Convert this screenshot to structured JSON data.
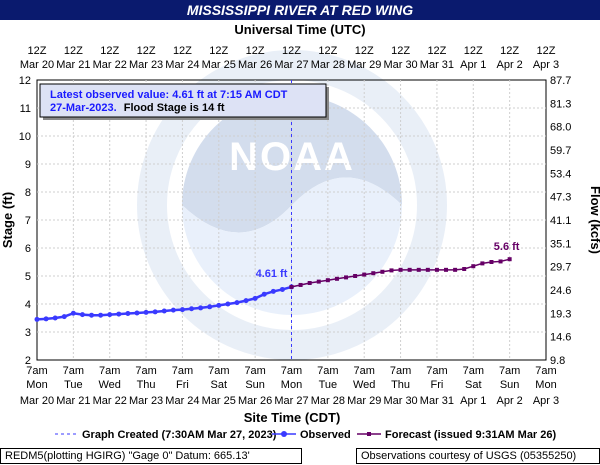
{
  "chart_data": {
    "type": "line",
    "title": "MISSISSIPPI RIVER AT RED WING",
    "top_axis_title": "Universal Time (UTC)",
    "xlabel": "Site Time (CDT)",
    "ylabel": "Stage (ft)",
    "ylabel_right": "Flow (kcfs)",
    "ylim": [
      2,
      12
    ],
    "yticks": [
      "2",
      "3",
      "4",
      "5",
      "6",
      "7",
      "8",
      "9",
      "10",
      "11",
      "12"
    ],
    "right_ticks": [
      "9.8",
      "14.6",
      "19.3",
      "24.6",
      "29.7",
      "35.1",
      "41.1",
      "47.3",
      "53.4",
      "59.7",
      "68.0",
      "81.3",
      "87.7"
    ],
    "bottom_ticks_row1": [
      "7am",
      "7am",
      "7am",
      "7am",
      "7am",
      "7am",
      "7am",
      "7am",
      "7am",
      "7am",
      "7am",
      "7am",
      "7am",
      "7am",
      "7am"
    ],
    "bottom_ticks_row2": [
      "Mon",
      "Tue",
      "Wed",
      "Thu",
      "Fri",
      "Sat",
      "Sun",
      "Mon",
      "Tue",
      "Wed",
      "Thu",
      "Fri",
      "Sat",
      "Sun",
      "Mon"
    ],
    "bottom_ticks_row3": [
      "Mar 20",
      "Mar 21",
      "Mar 22",
      "Mar 23",
      "Mar 24",
      "Mar 25",
      "Mar 26",
      "Mar 27",
      "Mar 28",
      "Mar 29",
      "Mar 30",
      "Mar 31",
      "Apr 1",
      "Apr 2",
      "Apr 3"
    ],
    "top_ticks_row1": [
      "12Z",
      "12Z",
      "12Z",
      "12Z",
      "12Z",
      "12Z",
      "12Z",
      "12Z",
      "12Z",
      "12Z",
      "12Z",
      "12Z",
      "12Z",
      "12Z",
      "12Z"
    ],
    "top_ticks_row2": [
      "Mar 20",
      "Mar 21",
      "Mar 22",
      "Mar 23",
      "Mar 24",
      "Mar 25",
      "Mar 26",
      "Mar 27",
      "Mar 28",
      "Mar 29",
      "Mar 30",
      "Mar 31",
      "Apr 1",
      "Apr 2",
      "Apr 3"
    ],
    "info_line1": "Latest observed value: 4.61 ft at 7:15 AM CDT",
    "info_line2_date": "27-Mar-2023.",
    "info_line2_rest": "Flood Stage is 14 ft",
    "observed_label": "4.61 ft",
    "forecast_label": "5.6 ft",
    "legend": {
      "graph_created": "Graph Created (7:30AM Mar 27, 2023)",
      "observed": "Observed",
      "forecast": "Forecast (issued 9:31AM Mar 26)"
    },
    "series": [
      {
        "name": "Observed",
        "color": "#3a3aff",
        "x": [
          0,
          0.25,
          0.5,
          0.75,
          1,
          1.25,
          1.5,
          1.75,
          2,
          2.25,
          2.5,
          2.75,
          3,
          3.25,
          3.5,
          3.75,
          4,
          4.25,
          4.5,
          4.75,
          5,
          5.25,
          5.5,
          5.75,
          6,
          6.25,
          6.5,
          6.75,
          7
        ],
        "values": [
          3.45,
          3.47,
          3.5,
          3.55,
          3.67,
          3.62,
          3.6,
          3.6,
          3.62,
          3.64,
          3.66,
          3.68,
          3.7,
          3.72,
          3.75,
          3.78,
          3.8,
          3.83,
          3.86,
          3.9,
          3.95,
          4.0,
          4.05,
          4.12,
          4.2,
          4.35,
          4.45,
          4.52,
          4.61
        ]
      },
      {
        "name": "Forecast",
        "color": "#660066",
        "x": [
          7,
          7.25,
          7.5,
          7.75,
          8,
          8.25,
          8.5,
          8.75,
          9,
          9.25,
          9.5,
          9.75,
          10,
          10.25,
          10.5,
          10.75,
          11,
          11.25,
          11.5,
          11.75,
          12,
          12.25,
          12.5,
          12.75,
          13
        ],
        "values": [
          4.61,
          4.68,
          4.75,
          4.8,
          4.85,
          4.9,
          4.95,
          5.0,
          5.05,
          5.1,
          5.15,
          5.2,
          5.22,
          5.22,
          5.22,
          5.22,
          5.22,
          5.22,
          5.22,
          5.25,
          5.35,
          5.45,
          5.5,
          5.52,
          5.6
        ]
      }
    ]
  },
  "footer": {
    "left": "REDM5(plotting HGIRG) \"Gage 0\" Datum: 665.13'",
    "right": "Observations courtesy of USGS (05355250)"
  }
}
